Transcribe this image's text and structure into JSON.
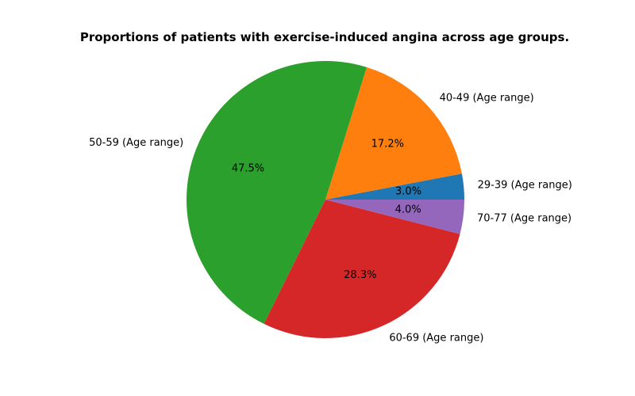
{
  "chart_data": {
    "type": "pie",
    "title": "Proportions of patients with exercise-induced angina across age groups.",
    "slices": [
      {
        "label": "29-39 (Age range)",
        "value": 3.0,
        "pct_label": "3.0%",
        "color": "#1f77b4"
      },
      {
        "label": "40-49 (Age range)",
        "value": 17.2,
        "pct_label": "17.2%",
        "color": "#ff7f0e"
      },
      {
        "label": "50-59 (Age range)",
        "value": 47.5,
        "pct_label": "47.5%",
        "color": "#2ca02c"
      },
      {
        "label": "60-69 (Age range)",
        "value": 28.3,
        "pct_label": "28.3%",
        "color": "#d62728"
      },
      {
        "label": "70-77 (Age range)",
        "value": 4.0,
        "pct_label": "4.0%",
        "color": "#9467bd"
      }
    ]
  }
}
